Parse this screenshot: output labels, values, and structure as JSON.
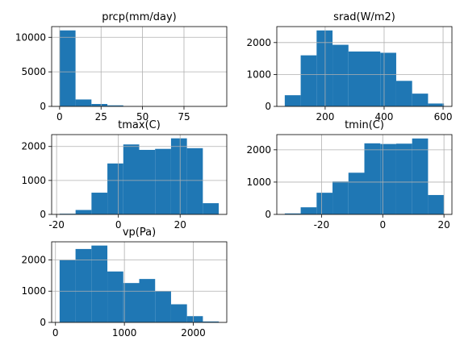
{
  "chart_data": [
    {
      "type": "histogram",
      "title": "prcp(mm/day)",
      "bins": [
        0,
        9.6,
        19.2,
        28.8,
        38.4,
        48,
        57.6,
        67.2,
        76.8,
        86.4,
        96
      ],
      "values": [
        11000,
        1000,
        350,
        150,
        50,
        20,
        10,
        5,
        2,
        1
      ],
      "color": "#1f77b4",
      "xlim": [
        -4.8,
        100.8
      ],
      "ylim": [
        0,
        11550
      ],
      "xticks": [
        0,
        25,
        50,
        75
      ],
      "yticks": [
        0,
        5000,
        10000
      ],
      "grid": true
    },
    {
      "type": "histogram",
      "title": "srad(W/m2)",
      "bins": [
        63,
        117,
        171,
        225,
        279,
        333,
        387,
        441,
        495,
        549,
        603
      ],
      "values": [
        350,
        1600,
        2380,
        1930,
        1720,
        1720,
        1680,
        800,
        400,
        90
      ],
      "color": "#1f77b4",
      "xlim": [
        36,
        630
      ],
      "ylim": [
        0,
        2500
      ],
      "xticks": [
        200,
        400,
        600
      ],
      "yticks": [
        0,
        1000,
        2000
      ],
      "grid": true
    },
    {
      "type": "histogram",
      "title": "tmax(C)",
      "bins": [
        -19,
        -13.85,
        -8.7,
        -3.55,
        1.6,
        6.75,
        11.9,
        17.05,
        22.2,
        27.35,
        32.5
      ],
      "values": [
        20,
        130,
        640,
        1500,
        2060,
        1900,
        1930,
        2240,
        1950,
        330
      ],
      "color": "#1f77b4",
      "xlim": [
        -21.6,
        35.1
      ],
      "ylim": [
        0,
        2350
      ],
      "xticks": [
        -20,
        0,
        20
      ],
      "yticks": [
        0,
        1000,
        2000
      ],
      "grid": true
    },
    {
      "type": "histogram",
      "title": "tmin(C)",
      "bins": [
        -32,
        -26.8,
        -21.6,
        -16.4,
        -11.2,
        -6,
        -0.8,
        4.4,
        9.6,
        14.8,
        20
      ],
      "values": [
        30,
        220,
        670,
        1020,
        1290,
        2200,
        2180,
        2190,
        2350,
        600
      ],
      "color": "#1f77b4",
      "xlim": [
        -34.6,
        22.6
      ],
      "ylim": [
        0,
        2470
      ],
      "xticks": [
        -20,
        0,
        20
      ],
      "yticks": [
        0,
        1000,
        2000
      ],
      "grid": true
    },
    {
      "type": "histogram",
      "title": "vp(Pa)",
      "bins": [
        60,
        291,
        522,
        753,
        984,
        1215,
        1446,
        1677,
        1908,
        2139,
        2370
      ],
      "values": [
        2000,
        2350,
        2460,
        1630,
        1260,
        1390,
        1000,
        580,
        200,
        30
      ],
      "color": "#1f77b4",
      "xlim": [
        -55.5,
        2485.5
      ],
      "ylim": [
        0,
        2580
      ],
      "xticks": [
        0,
        1000,
        2000
      ],
      "yticks": [
        0,
        1000,
        2000
      ],
      "grid": true
    }
  ]
}
